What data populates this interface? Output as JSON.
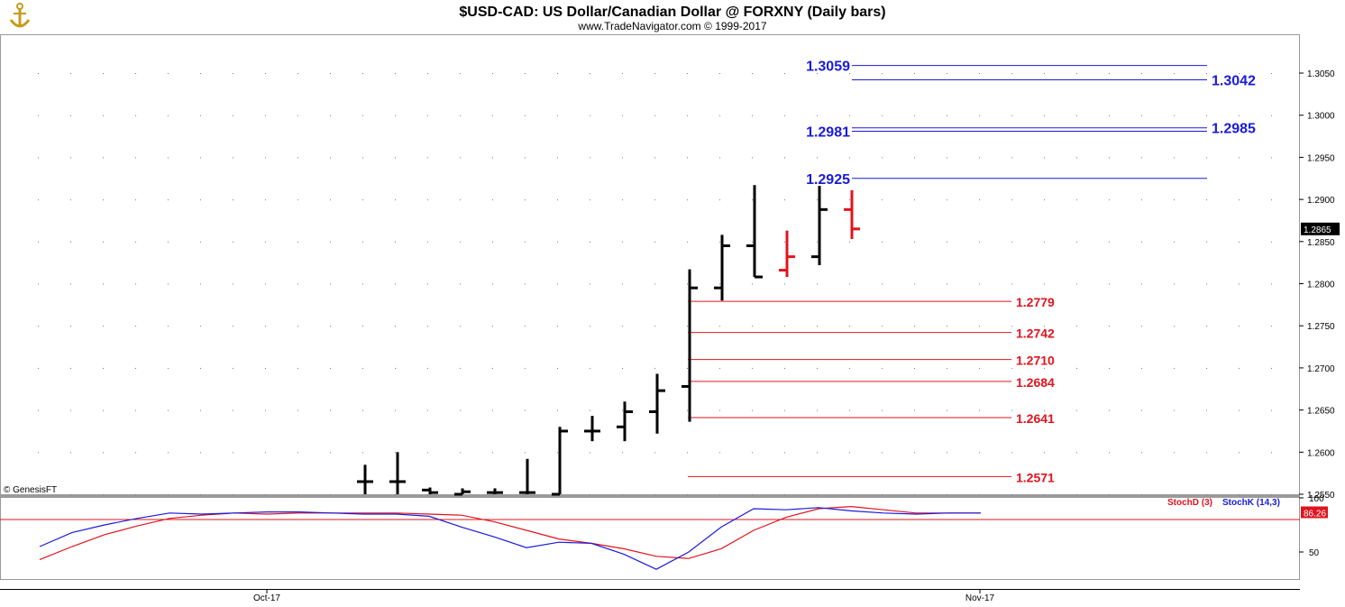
{
  "header": {
    "title": "$USD-CAD:  US Dollar/Canadian Dollar @ FORXNY  (Daily bars)",
    "subtitle": "www.TradeNavigator.com © 1999-2017",
    "logo_icon": "anchor-icon"
  },
  "copyright_label": "© GenesisFT",
  "colors": {
    "up_bar": "#000000",
    "down_bar": "#e0141e",
    "resistance": "#1a1adc",
    "support": "#e0141e",
    "stoch_k": "#1a1adc",
    "stoch_d": "#e0141e"
  },
  "chart_data": [
    {
      "type": "bar",
      "subtype": "ohlc",
      "ylim": [
        1.255,
        1.3095
      ],
      "yticks": [
        "1.2550",
        "1.2600",
        "1.2650",
        "1.2700",
        "1.2750",
        "1.2800",
        "1.2850",
        "1.2900",
        "1.2950",
        "1.3000",
        "1.3050"
      ],
      "grid": "dotted",
      "last_price_label": "1.2865",
      "x_ticks": [
        "Oct-17",
        "Nov-17"
      ],
      "bars": [
        {
          "h": 1.2585,
          "l": 1.255,
          "o": 1.2565,
          "c": 1.2565,
          "color": "black"
        },
        {
          "h": 1.26,
          "l": 1.255,
          "o": 1.2565,
          "c": 1.2565,
          "color": "black"
        },
        {
          "h": 1.2558,
          "l": 1.255,
          "o": 1.2555,
          "c": 1.2552,
          "color": "black"
        },
        {
          "h": 1.2557,
          "l": 1.255,
          "o": 1.255,
          "c": 1.2553,
          "color": "black"
        },
        {
          "h": 1.2557,
          "l": 1.255,
          "o": 1.2552,
          "c": 1.2552,
          "color": "black"
        },
        {
          "h": 1.2592,
          "l": 1.255,
          "o": 1.2552,
          "c": 1.2552,
          "color": "black"
        },
        {
          "h": 1.263,
          "l": 1.255,
          "o": 1.255,
          "c": 1.2625,
          "color": "black"
        },
        {
          "h": 1.2643,
          "l": 1.2613,
          "o": 1.2625,
          "c": 1.2625,
          "color": "black"
        },
        {
          "h": 1.266,
          "l": 1.2613,
          "o": 1.263,
          "c": 1.2648,
          "color": "black"
        },
        {
          "h": 1.2693,
          "l": 1.2622,
          "o": 1.2648,
          "c": 1.2673,
          "color": "black"
        },
        {
          "h": 1.2817,
          "l": 1.2636,
          "o": 1.2678,
          "c": 1.2795,
          "color": "black"
        },
        {
          "h": 1.2858,
          "l": 1.278,
          "o": 1.2795,
          "c": 1.2845,
          "color": "black"
        },
        {
          "h": 1.2917,
          "l": 1.2808,
          "o": 1.2845,
          "c": 1.2808,
          "color": "black"
        },
        {
          "h": 1.2863,
          "l": 1.2808,
          "o": 1.2816,
          "c": 1.2832,
          "color": "red"
        },
        {
          "h": 1.2916,
          "l": 1.2822,
          "o": 1.2832,
          "c": 1.2888,
          "color": "black"
        },
        {
          "h": 1.2911,
          "l": 1.2853,
          "o": 1.2888,
          "c": 1.2865,
          "color": "red"
        }
      ],
      "levels": [
        {
          "value": 1.3059,
          "label": "1.3059",
          "color": "blue",
          "label_side": "left"
        },
        {
          "value": 1.3042,
          "label": "1.3042",
          "color": "blue",
          "label_side": "right"
        },
        {
          "value": 1.2985,
          "label": "1.2985",
          "color": "blue",
          "label_side": "right"
        },
        {
          "value": 1.2981,
          "label": "1.2981",
          "color": "blue",
          "label_side": "left"
        },
        {
          "value": 1.2925,
          "label": "1.2925",
          "color": "blue",
          "label_side": "left"
        },
        {
          "value": 1.2779,
          "label": "1.2779",
          "color": "red",
          "label_side": "right"
        },
        {
          "value": 1.2742,
          "label": "1.2742",
          "color": "red",
          "label_side": "right"
        },
        {
          "value": 1.271,
          "label": "1.2710",
          "color": "red",
          "label_side": "right"
        },
        {
          "value": 1.2684,
          "label": "1.2684",
          "color": "red",
          "label_side": "right"
        },
        {
          "value": 1.2641,
          "label": "1.2641",
          "color": "red",
          "label_side": "right"
        },
        {
          "value": 1.2571,
          "label": "1.2571",
          "color": "red",
          "label_side": "right"
        }
      ]
    },
    {
      "type": "line",
      "ylim": [
        25,
        100
      ],
      "yticks": [
        "100",
        "50"
      ],
      "reference_line": 80,
      "last_value_label": "86.26",
      "series": [
        {
          "name": "StochD (3)",
          "color": "red",
          "values": [
            43,
            55,
            66,
            74,
            81,
            84,
            86,
            85,
            86,
            86,
            86,
            86,
            85,
            84,
            78,
            70,
            62,
            58,
            53,
            46,
            44,
            53,
            70,
            82,
            90,
            92,
            89,
            86,
            86,
            86
          ]
        },
        {
          "name": "StochK (14,3)",
          "color": "blue",
          "values": [
            55,
            68,
            75,
            81,
            86,
            85,
            86,
            87,
            87,
            86,
            85,
            85,
            83,
            73,
            64,
            54,
            59,
            58,
            48,
            34,
            50,
            73,
            90,
            89,
            91,
            88,
            86,
            85,
            86,
            86
          ]
        }
      ]
    }
  ]
}
